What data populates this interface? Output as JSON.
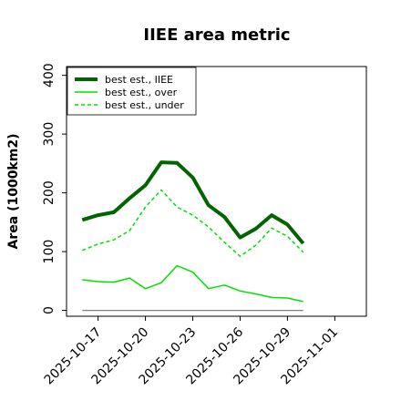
{
  "chart_data": {
    "type": "line",
    "title": "IIEE area metric",
    "xlabel": "",
    "ylabel": "Area (1000km2)",
    "x_range": [
      "2025-10-15",
      "2025-11-03"
    ],
    "ylim": [
      -10,
      415
    ],
    "y_ticks": [
      0,
      100,
      200,
      300,
      400
    ],
    "x_ticks": [
      "2025-10-17",
      "2025-10-20",
      "2025-10-23",
      "2025-10-26",
      "2025-10-29",
      "2025-11-01"
    ],
    "grid": false,
    "legend_position": "top-left",
    "x": [
      "2025-10-16",
      "2025-10-17",
      "2025-10-18",
      "2025-10-19",
      "2025-10-20",
      "2025-10-21",
      "2025-10-22",
      "2025-10-23",
      "2025-10-24",
      "2025-10-25",
      "2025-10-26",
      "2025-10-27",
      "2025-10-28",
      "2025-10-29",
      "2025-10-30"
    ],
    "series": [
      {
        "name": "best est., IIEE",
        "color": "#006400",
        "style": "solid-thick",
        "values": [
          154,
          162,
          167,
          191,
          213,
          252,
          251,
          226,
          179,
          159,
          124,
          139,
          162,
          146,
          114
        ]
      },
      {
        "name": "best est., over",
        "color": "#00e000",
        "style": "solid",
        "values": [
          52,
          49,
          48,
          55,
          37,
          47,
          76,
          65,
          37,
          43,
          33,
          28,
          22,
          21,
          15
        ]
      },
      {
        "name": "best est., under",
        "color": "#00e000",
        "style": "dashed",
        "values": [
          102,
          113,
          120,
          136,
          176,
          205,
          176,
          162,
          142,
          116,
          92,
          111,
          140,
          126,
          99
        ]
      },
      {
        "name": "",
        "color": "#808080",
        "style": "baseline",
        "values": [
          0,
          0,
          0,
          0,
          0,
          0,
          0,
          0,
          0,
          0,
          0,
          0,
          0,
          0,
          0
        ]
      }
    ]
  }
}
